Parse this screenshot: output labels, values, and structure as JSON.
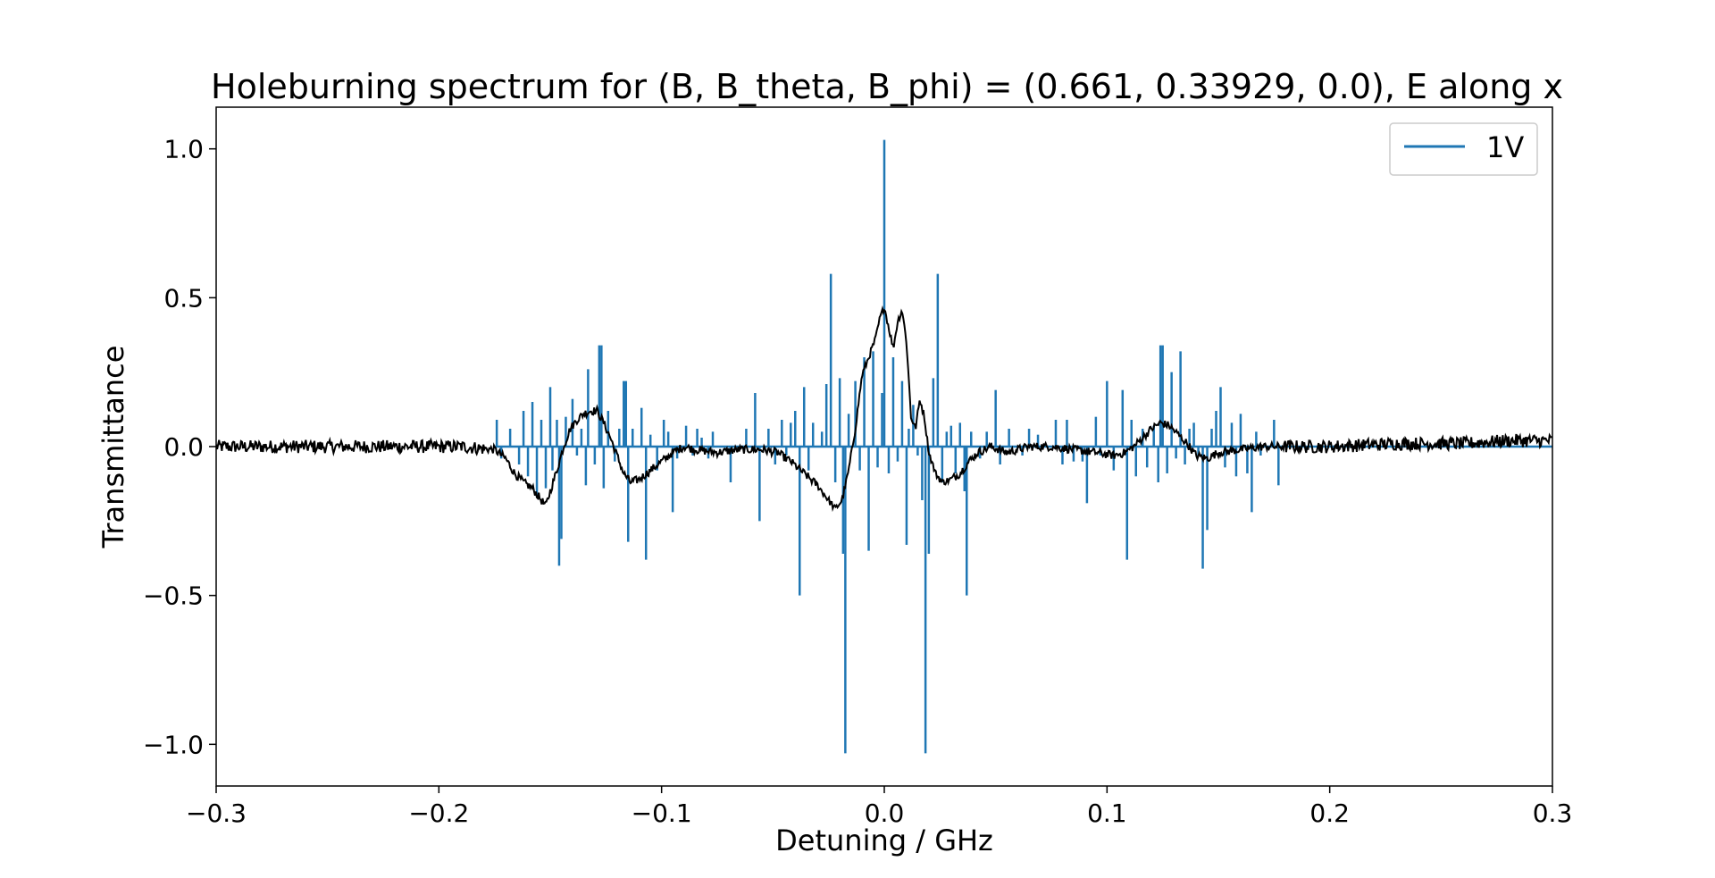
{
  "chart_data": {
    "type": "line",
    "title": "Holeburning spectrum for (B, B_theta, B_phi) = (0.661, 0.33929, 0.0), E along x",
    "xlabel": "Detuning / GHz",
    "ylabel": "Transmittance",
    "xlim": [
      -0.3,
      0.3
    ],
    "ylim": [
      -1.14,
      1.14
    ],
    "x_ticks": [
      -0.3,
      -0.2,
      -0.1,
      0.0,
      0.1,
      0.2,
      0.3
    ],
    "x_tick_labels": [
      "−0.3",
      "−0.2",
      "−0.1",
      "0.0",
      "0.1",
      "0.2",
      "0.3"
    ],
    "y_ticks": [
      -1.0,
      -0.5,
      0.0,
      0.5,
      1.0
    ],
    "y_tick_labels": [
      "−1.0",
      "−0.5",
      "0.0",
      "0.5",
      "1.0"
    ],
    "grid": false,
    "legend": {
      "placement": "top-right",
      "entries": [
        {
          "label": "1V",
          "color": "#1f77b4"
        }
      ]
    },
    "series": [
      {
        "name": "1V",
        "color": "#1f77b4",
        "style": "stems",
        "baseline": 0.0,
        "points": [
          [
            -0.174,
            0.09
          ],
          [
            -0.172,
            -0.04
          ],
          [
            -0.168,
            0.06
          ],
          [
            -0.164,
            -0.06
          ],
          [
            -0.162,
            0.12
          ],
          [
            -0.16,
            -0.1
          ],
          [
            -0.158,
            0.15
          ],
          [
            -0.156,
            -0.17
          ],
          [
            -0.154,
            0.09
          ],
          [
            -0.152,
            -0.14
          ],
          [
            -0.15,
            0.2
          ],
          [
            -0.149,
            -0.08
          ],
          [
            -0.147,
            0.09
          ],
          [
            -0.146,
            -0.4
          ],
          [
            -0.145,
            -0.31
          ],
          [
            -0.143,
            0.1
          ],
          [
            -0.14,
            0.16
          ],
          [
            -0.138,
            -0.03
          ],
          [
            -0.136,
            0.06
          ],
          [
            -0.134,
            -0.13
          ],
          [
            -0.133,
            0.26
          ],
          [
            -0.13,
            -0.06
          ],
          [
            -0.128,
            0.34
          ],
          [
            -0.127,
            0.34
          ],
          [
            -0.126,
            -0.14
          ],
          [
            -0.124,
            0.12
          ],
          [
            -0.121,
            -0.05
          ],
          [
            -0.119,
            0.06
          ],
          [
            -0.117,
            0.22
          ],
          [
            -0.116,
            0.22
          ],
          [
            -0.115,
            -0.32
          ],
          [
            -0.113,
            0.06
          ],
          [
            -0.109,
            0.13
          ],
          [
            -0.107,
            -0.38
          ],
          [
            -0.105,
            0.04
          ],
          [
            -0.102,
            -0.08
          ],
          [
            -0.099,
            0.09
          ],
          [
            -0.097,
            0.05
          ],
          [
            -0.095,
            -0.22
          ],
          [
            -0.093,
            -0.04
          ],
          [
            -0.089,
            0.07
          ],
          [
            -0.086,
            -0.03
          ],
          [
            -0.084,
            0.06
          ],
          [
            -0.082,
            0.03
          ],
          [
            -0.079,
            -0.04
          ],
          [
            -0.077,
            0.05
          ],
          [
            -0.069,
            -0.12
          ],
          [
            -0.062,
            0.06
          ],
          [
            -0.058,
            0.18
          ],
          [
            -0.056,
            -0.25
          ],
          [
            -0.052,
            0.06
          ],
          [
            -0.049,
            -0.06
          ],
          [
            -0.046,
            0.09
          ],
          [
            -0.044,
            -0.03
          ],
          [
            -0.042,
            0.08
          ],
          [
            -0.04,
            0.12
          ],
          [
            -0.038,
            -0.5
          ],
          [
            -0.036,
            0.2
          ],
          [
            -0.034,
            -0.08
          ],
          [
            -0.032,
            0.08
          ],
          [
            -0.028,
            0.05
          ],
          [
            -0.026,
            0.21
          ],
          [
            -0.024,
            0.58
          ],
          [
            -0.022,
            -0.12
          ],
          [
            -0.02,
            0.23
          ],
          [
            -0.0185,
            -0.36
          ],
          [
            -0.0175,
            -1.03
          ],
          [
            -0.016,
            0.11
          ],
          [
            -0.013,
            0.22
          ],
          [
            -0.011,
            -0.08
          ],
          [
            -0.009,
            0.3
          ],
          [
            -0.007,
            -0.35
          ],
          [
            -0.005,
            0.32
          ],
          [
            -0.003,
            -0.07
          ],
          [
            -0.001,
            0.18
          ],
          [
            0.0,
            1.03
          ],
          [
            0.002,
            -0.09
          ],
          [
            0.004,
            0.3
          ],
          [
            0.006,
            -0.05
          ],
          [
            0.008,
            0.22
          ],
          [
            0.01,
            -0.33
          ],
          [
            0.011,
            0.06
          ],
          [
            0.013,
            0.14
          ],
          [
            0.015,
            -0.03
          ],
          [
            0.017,
            -0.18
          ],
          [
            0.0185,
            -1.03
          ],
          [
            0.02,
            -0.36
          ],
          [
            0.022,
            0.23
          ],
          [
            0.024,
            0.58
          ],
          [
            0.026,
            -0.12
          ],
          [
            0.028,
            0.05
          ],
          [
            0.03,
            0.07
          ],
          [
            0.032,
            -0.09
          ],
          [
            0.034,
            0.08
          ],
          [
            0.036,
            -0.15
          ],
          [
            0.037,
            -0.5
          ],
          [
            0.039,
            0.05
          ],
          [
            0.043,
            -0.04
          ],
          [
            0.046,
            0.05
          ],
          [
            0.05,
            0.19
          ],
          [
            0.052,
            -0.06
          ],
          [
            0.056,
            0.06
          ],
          [
            0.062,
            -0.03
          ],
          [
            0.065,
            0.06
          ],
          [
            0.069,
            0.04
          ],
          [
            0.077,
            0.09
          ],
          [
            0.08,
            -0.06
          ],
          [
            0.082,
            0.09
          ],
          [
            0.085,
            -0.05
          ],
          [
            0.089,
            -0.05
          ],
          [
            0.091,
            -0.19
          ],
          [
            0.095,
            0.1
          ],
          [
            0.097,
            -0.03
          ],
          [
            0.1,
            0.22
          ],
          [
            0.103,
            -0.08
          ],
          [
            0.107,
            0.19
          ],
          [
            0.109,
            -0.38
          ],
          [
            0.111,
            0.09
          ],
          [
            0.113,
            -0.1
          ],
          [
            0.116,
            0.06
          ],
          [
            0.118,
            -0.07
          ],
          [
            0.121,
            0.07
          ],
          [
            0.123,
            -0.12
          ],
          [
            0.124,
            0.34
          ],
          [
            0.125,
            0.34
          ],
          [
            0.127,
            -0.09
          ],
          [
            0.129,
            0.25
          ],
          [
            0.131,
            -0.04
          ],
          [
            0.133,
            0.32
          ],
          [
            0.135,
            -0.06
          ],
          [
            0.137,
            0.06
          ],
          [
            0.139,
            0.08
          ],
          [
            0.141,
            -0.03
          ],
          [
            0.143,
            -0.41
          ],
          [
            0.145,
            -0.28
          ],
          [
            0.147,
            0.06
          ],
          [
            0.149,
            0.12
          ],
          [
            0.151,
            0.2
          ],
          [
            0.153,
            -0.07
          ],
          [
            0.156,
            0.08
          ],
          [
            0.158,
            -0.1
          ],
          [
            0.16,
            0.11
          ],
          [
            0.163,
            -0.09
          ],
          [
            0.165,
            -0.22
          ],
          [
            0.167,
            0.05
          ],
          [
            0.169,
            -0.03
          ],
          [
            0.175,
            0.09
          ],
          [
            0.177,
            -0.13
          ]
        ]
      },
      {
        "color": "#000000",
        "style": "line",
        "anchors": [
          [
            -0.3,
            0.0
          ],
          [
            -0.27,
            0.0
          ],
          [
            -0.24,
            0.0
          ],
          [
            -0.21,
            0.0
          ],
          [
            -0.19,
            0.0
          ],
          [
            -0.175,
            -0.01
          ],
          [
            -0.17,
            -0.04
          ],
          [
            -0.166,
            -0.09
          ],
          [
            -0.162,
            -0.12
          ],
          [
            -0.158,
            -0.14
          ],
          [
            -0.155,
            -0.17
          ],
          [
            -0.152,
            -0.2
          ],
          [
            -0.15,
            -0.15
          ],
          [
            -0.147,
            -0.08
          ],
          [
            -0.144,
            0.0
          ],
          [
            -0.141,
            0.06
          ],
          [
            -0.138,
            0.09
          ],
          [
            -0.135,
            0.11
          ],
          [
            -0.132,
            0.12
          ],
          [
            -0.129,
            0.12
          ],
          [
            -0.126,
            0.08
          ],
          [
            -0.123,
            0.03
          ],
          [
            -0.12,
            -0.03
          ],
          [
            -0.117,
            -0.09
          ],
          [
            -0.114,
            -0.12
          ],
          [
            -0.11,
            -0.11
          ],
          [
            -0.105,
            -0.08
          ],
          [
            -0.1,
            -0.05
          ],
          [
            -0.095,
            -0.02
          ],
          [
            -0.09,
            0.0
          ],
          [
            -0.085,
            -0.01
          ],
          [
            -0.075,
            -0.02
          ],
          [
            -0.065,
            -0.01
          ],
          [
            -0.055,
            -0.01
          ],
          [
            -0.048,
            -0.02
          ],
          [
            -0.042,
            -0.05
          ],
          [
            -0.036,
            -0.09
          ],
          [
            -0.03,
            -0.13
          ],
          [
            -0.026,
            -0.17
          ],
          [
            -0.022,
            -0.21
          ],
          [
            -0.019,
            -0.18
          ],
          [
            -0.016,
            -0.08
          ],
          [
            -0.013,
            0.06
          ],
          [
            -0.01,
            0.24
          ],
          [
            -0.007,
            0.3
          ],
          [
            -0.004,
            0.36
          ],
          [
            -0.002,
            0.43
          ],
          [
            0.0,
            0.47
          ],
          [
            0.002,
            0.4
          ],
          [
            0.004,
            0.33
          ],
          [
            0.006,
            0.42
          ],
          [
            0.008,
            0.46
          ],
          [
            0.01,
            0.35
          ],
          [
            0.012,
            0.1
          ],
          [
            0.014,
            0.06
          ],
          [
            0.016,
            0.16
          ],
          [
            0.018,
            0.1
          ],
          [
            0.02,
            -0.02
          ],
          [
            0.023,
            -0.09
          ],
          [
            0.026,
            -0.12
          ],
          [
            0.03,
            -0.11
          ],
          [
            0.034,
            -0.09
          ],
          [
            0.038,
            -0.05
          ],
          [
            0.042,
            -0.02
          ],
          [
            0.048,
            0.0
          ],
          [
            0.055,
            -0.02
          ],
          [
            0.065,
            0.0
          ],
          [
            0.075,
            0.0
          ],
          [
            0.085,
            -0.01
          ],
          [
            0.095,
            -0.02
          ],
          [
            0.103,
            -0.03
          ],
          [
            0.108,
            -0.02
          ],
          [
            0.112,
            0.0
          ],
          [
            0.116,
            0.03
          ],
          [
            0.12,
            0.06
          ],
          [
            0.124,
            0.08
          ],
          [
            0.128,
            0.07
          ],
          [
            0.132,
            0.04
          ],
          [
            0.136,
            0.01
          ],
          [
            0.14,
            -0.03
          ],
          [
            0.145,
            -0.04
          ],
          [
            0.15,
            -0.02
          ],
          [
            0.16,
            -0.01
          ],
          [
            0.17,
            0.0
          ],
          [
            0.18,
            0.0
          ],
          [
            0.2,
            0.0
          ],
          [
            0.23,
            0.01
          ],
          [
            0.26,
            0.01
          ],
          [
            0.28,
            0.02
          ],
          [
            0.3,
            0.02
          ]
        ]
      }
    ]
  }
}
